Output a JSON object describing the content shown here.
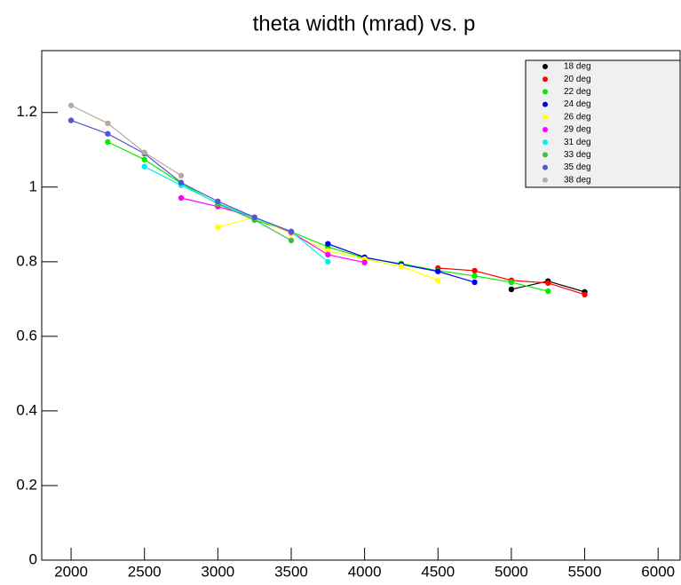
{
  "chart_data": {
    "type": "line",
    "title": "theta width (mrad) vs. p",
    "xlim": [
      1800,
      6150
    ],
    "ylim": [
      0,
      1.366
    ],
    "xticks": [
      2000,
      2500,
      3000,
      3500,
      4000,
      4500,
      5000,
      5500,
      6000
    ],
    "yticks": [
      0,
      0.2,
      0.4,
      0.6,
      0.8,
      1,
      1.2
    ],
    "legend": "top-right",
    "series": [
      {
        "name": "18 deg",
        "color": "#000000",
        "x": [
          5000,
          5250,
          5500
        ],
        "values": [
          0.726,
          0.748,
          0.719
        ]
      },
      {
        "name": "20 deg",
        "color": "#ff0000",
        "x": [
          4500,
          4750,
          5000,
          5250,
          5500
        ],
        "values": [
          0.783,
          0.776,
          0.75,
          0.743,
          0.712
        ]
      },
      {
        "name": "22 deg",
        "color": "#00ee00",
        "x": [
          2250,
          2500,
          2750,
          3000,
          3250,
          3500,
          3750,
          4000,
          4250,
          4500,
          4750,
          5000,
          5250
        ],
        "values": [
          1.121,
          1.074,
          1.01,
          0.955,
          0.912,
          0.88,
          0.84,
          0.81,
          0.795,
          0.776,
          0.762,
          0.745,
          0.721
        ]
      },
      {
        "name": "24 deg",
        "color": "#0000ee",
        "x": [
          3750,
          4000,
          4250,
          4500,
          4750
        ],
        "values": [
          0.848,
          0.812,
          0.793,
          0.774,
          0.745
        ]
      },
      {
        "name": "26 deg",
        "color": "#ffff00",
        "x": [
          3000,
          3250,
          3500,
          3750,
          4000,
          4250,
          4500
        ],
        "values": [
          0.893,
          0.919,
          0.875,
          0.829,
          0.807,
          0.788,
          0.75
        ]
      },
      {
        "name": "29 deg",
        "color": "#ff00ff",
        "x": [
          2750,
          3000,
          3250,
          3500,
          3750,
          4000
        ],
        "values": [
          0.971,
          0.948,
          0.919,
          0.879,
          0.819,
          0.798
        ]
      },
      {
        "name": "31 deg",
        "color": "#00eeee",
        "x": [
          2500,
          2750,
          3000,
          3250,
          3500,
          3750
        ],
        "values": [
          1.055,
          1.005,
          0.957,
          0.917,
          0.881,
          0.8
        ]
      },
      {
        "name": "33 deg",
        "color": "#44bb44",
        "x": [
          3000,
          3250,
          3500
        ],
        "values": [
          0.955,
          0.912,
          0.857
        ]
      },
      {
        "name": "35 deg",
        "color": "#5555cc",
        "x": [
          2000,
          2250,
          2500,
          2750,
          3000,
          3250,
          3500
        ],
        "values": [
          1.179,
          1.143,
          1.09,
          1.012,
          0.962,
          0.919,
          0.881
        ]
      },
      {
        "name": "38 deg",
        "color": "#b8aaa0",
        "x": [
          2000,
          2250,
          2500,
          2750
        ],
        "values": [
          1.219,
          1.171,
          1.093,
          1.031
        ]
      }
    ]
  }
}
